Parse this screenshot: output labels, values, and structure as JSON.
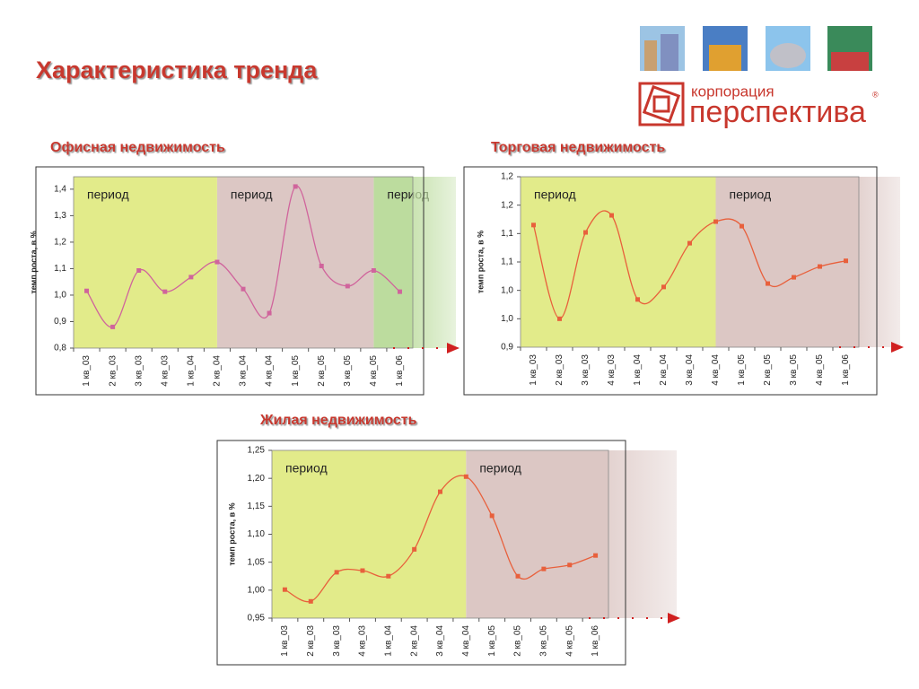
{
  "title": "Характеристика тренда",
  "logo": {
    "line1": "корпорация",
    "line2": "перспектива",
    "mark": "®"
  },
  "chart_data": [
    {
      "type": "line",
      "title": "Офисная недвижимость",
      "ylabel": "темп роста, в %",
      "categories": [
        "1 кв_03",
        "2 кв_03",
        "3 кв_03",
        "4 кв_03",
        "1 кв_04",
        "2 кв_04",
        "3 кв_04",
        "4 кв_04",
        "1 кв_05",
        "2 кв_05",
        "3 кв_05",
        "4 кв_05",
        "1 кв_06"
      ],
      "values": [
        1.016,
        0.88,
        1.093,
        1.013,
        1.068,
        1.125,
        1.023,
        0.932,
        1.41,
        1.11,
        1.034,
        1.093,
        1.013
      ],
      "color": "#d0649c",
      "ylim": [
        0.8,
        1.447
      ],
      "yticks": [
        {
          "value": 0.8,
          "label": "0,8"
        },
        {
          "value": 0.9,
          "label": "0,9"
        },
        {
          "value": 1.0,
          "label": "1,0"
        },
        {
          "value": 1.1,
          "label": "1,1"
        },
        {
          "value": 1.2,
          "label": "1,2"
        },
        {
          "value": 1.3,
          "label": "1,3"
        },
        {
          "value": 1.4,
          "label": "1,4"
        }
      ],
      "periods": [
        {
          "label": "период",
          "to": "2 кв_04",
          "color": "#e2eb8a"
        },
        {
          "label": "период",
          "to": "4 кв_05",
          "color": "#dcc7c4"
        },
        {
          "label": "период",
          "color": "#bcdc9e"
        }
      ]
    },
    {
      "type": "line",
      "title": "Торговая недвижимость",
      "ylabel": "темп роста, в %",
      "categories": [
        "1 кв_03",
        "2 кв_03",
        "3 кв_03",
        "4 кв_03",
        "1 кв_04",
        "2 кв_04",
        "3 кв_04",
        "4 кв_04",
        "1 кв_05",
        "2 кв_05",
        "3 кв_05",
        "4 кв_05",
        "1 кв_06"
      ],
      "values": [
        1.115,
        0.95,
        1.102,
        1.132,
        0.984,
        1.006,
        1.083,
        1.121,
        1.113,
        1.012,
        1.023,
        1.042,
        1.052
      ],
      "color": "#e8603c",
      "ylim": [
        0.9,
        1.2
      ],
      "yticks": [
        {
          "value": 0.9,
          "label": "0,9"
        },
        {
          "value": 0.95,
          "label": "1,0"
        },
        {
          "value": 1.0,
          "label": "1,0"
        },
        {
          "value": 1.05,
          "label": "1,1"
        },
        {
          "value": 1.1,
          "label": "1,1"
        },
        {
          "value": 1.15,
          "label": "1,2"
        },
        {
          "value": 1.2,
          "label": "1,2"
        }
      ],
      "periods": [
        {
          "label": "период",
          "to": "4 кв_04",
          "color": "#e2eb8a"
        },
        {
          "label": "период",
          "color": "#dcc7c4"
        }
      ]
    },
    {
      "type": "line",
      "title": "Жилая недвижимость",
      "ylabel": "темп роста, в %",
      "categories": [
        "1 кв_03",
        "2 кв_03",
        "3 кв_03",
        "4 кв_03",
        "1 кв_04",
        "2 кв_04",
        "3 кв_04",
        "4 кв_04",
        "1 кв_05",
        "2 кв_05",
        "3 кв_05",
        "4 кв_05",
        "1 кв_06"
      ],
      "values": [
        1.001,
        0.98,
        1.032,
        1.035,
        1.025,
        1.073,
        1.176,
        1.203,
        1.133,
        1.025,
        1.038,
        1.045,
        1.062
      ],
      "color": "#e8603c",
      "ylim": [
        0.95,
        1.25
      ],
      "yticks": [
        {
          "value": 0.95,
          "label": "0,95"
        },
        {
          "value": 1.0,
          "label": "1,00"
        },
        {
          "value": 1.05,
          "label": "1,05"
        },
        {
          "value": 1.1,
          "label": "1,10"
        },
        {
          "value": 1.15,
          "label": "1,15"
        },
        {
          "value": 1.2,
          "label": "1,20"
        },
        {
          "value": 1.25,
          "label": "1,25"
        }
      ],
      "periods": [
        {
          "label": "период",
          "to": "4 кв_04",
          "color": "#e2eb8a"
        },
        {
          "label": "период",
          "color": "#dcc7c4"
        }
      ]
    }
  ]
}
